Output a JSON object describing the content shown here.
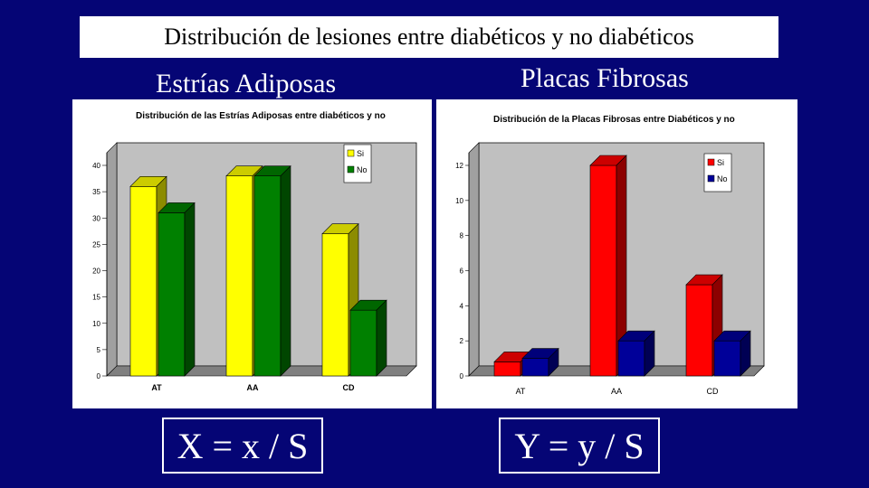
{
  "slide": {
    "title": "Distribución de lesiones entre diabéticos y no diabéticos",
    "left_heading": "Estrías Adiposas",
    "right_heading": "Placas Fibrosas",
    "left_formula": "X = x / S",
    "right_formula": "Y = y / S",
    "background_color": "#050575"
  },
  "chart_data": [
    {
      "type": "bar",
      "title": "Distribución de las Estrías Adiposas entre diabéticos y no",
      "categories": [
        "AT",
        "AA",
        "CD"
      ],
      "series": [
        {
          "name": "Si",
          "values": [
            36,
            38,
            27
          ],
          "color": "#ffff00"
        },
        {
          "name": "No",
          "values": [
            31,
            38,
            12.5
          ],
          "color": "#008000"
        }
      ],
      "ylim": [
        0,
        40
      ],
      "yticks": [
        "0",
        "5",
        "10",
        "15",
        "20",
        "25",
        "30",
        "35",
        "40"
      ],
      "legend": "top-right",
      "grid": false
    },
    {
      "type": "bar",
      "title": "Distribución de la Placas Fibrosas entre Diabéticos y no",
      "categories": [
        "AT",
        "AA",
        "CD"
      ],
      "series": [
        {
          "name": "Si",
          "values": [
            0.8,
            12,
            5.2
          ],
          "color": "#ff0000"
        },
        {
          "name": "No",
          "values": [
            1,
            2,
            2
          ],
          "color": "#000099"
        }
      ],
      "ylim": [
        0,
        12
      ],
      "yticks": [
        "0",
        "2",
        "4",
        "6",
        "8",
        "10",
        "12"
      ],
      "legend": "top-right",
      "grid": false
    }
  ]
}
